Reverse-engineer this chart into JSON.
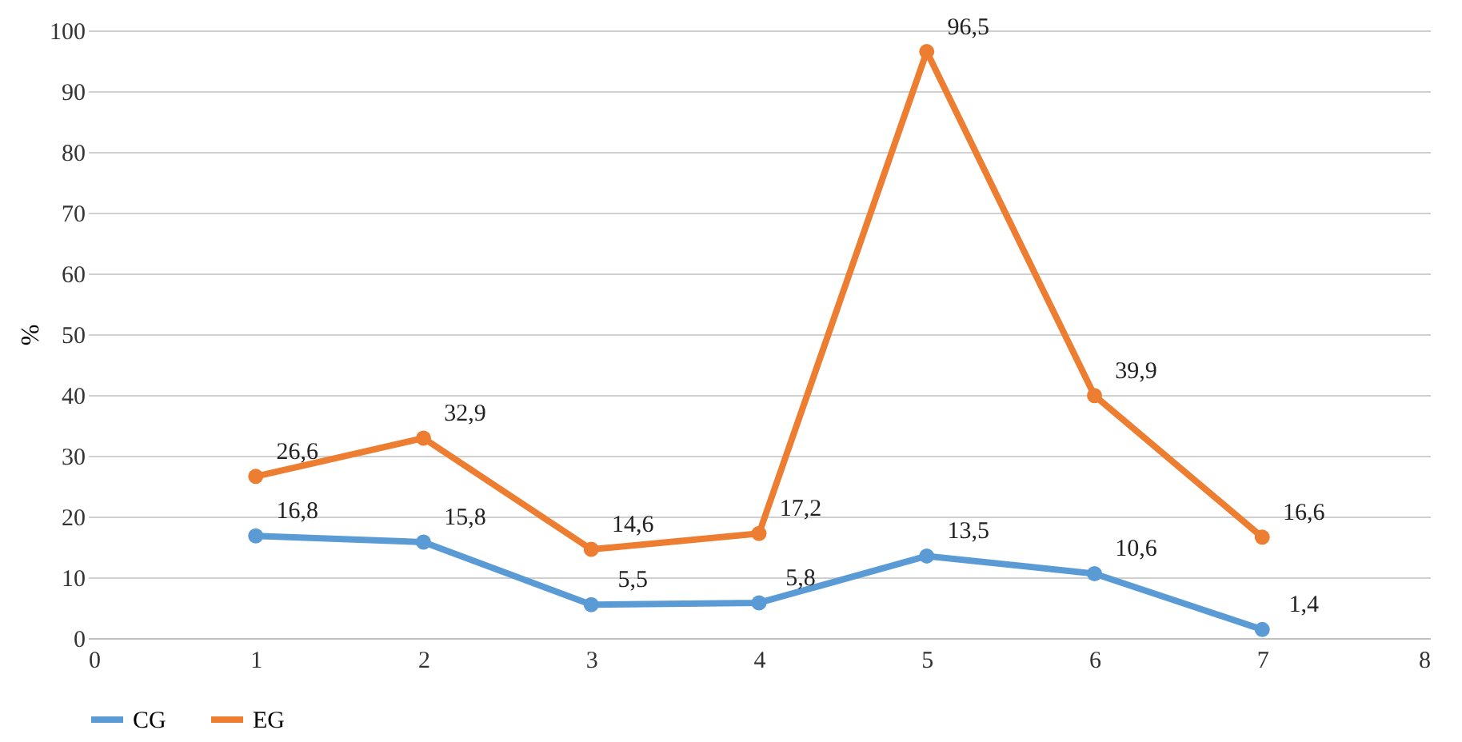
{
  "chart_data": {
    "type": "line",
    "ylabel": "%",
    "x": [
      1,
      2,
      3,
      4,
      5,
      6,
      7
    ],
    "series": [
      {
        "name": "CG",
        "color": "#5b9bd5",
        "values": [
          16.8,
          15.8,
          5.5,
          5.8,
          13.5,
          10.6,
          1.4
        ],
        "value_labels": [
          "16,8",
          "15,8",
          "5,5",
          "5,8",
          "13,5",
          "10,6",
          "1,4"
        ]
      },
      {
        "name": "EG",
        "color": "#ed7d31",
        "values": [
          26.6,
          32.9,
          14.6,
          17.2,
          96.5,
          39.9,
          16.6
        ],
        "value_labels": [
          "26,6",
          "32,9",
          "14,6",
          "17,2",
          "96,5",
          "39,9",
          "16,6"
        ]
      }
    ],
    "xlim": [
      0,
      8
    ],
    "xticks": [
      0,
      1,
      2,
      3,
      4,
      5,
      6,
      7,
      8
    ],
    "ylim": [
      0,
      100
    ],
    "yticks": [
      0,
      10,
      20,
      30,
      40,
      50,
      60,
      70,
      80,
      90,
      100
    ],
    "grid": "y",
    "legend": "bottom",
    "marker": "circle",
    "line_style": "solid"
  }
}
